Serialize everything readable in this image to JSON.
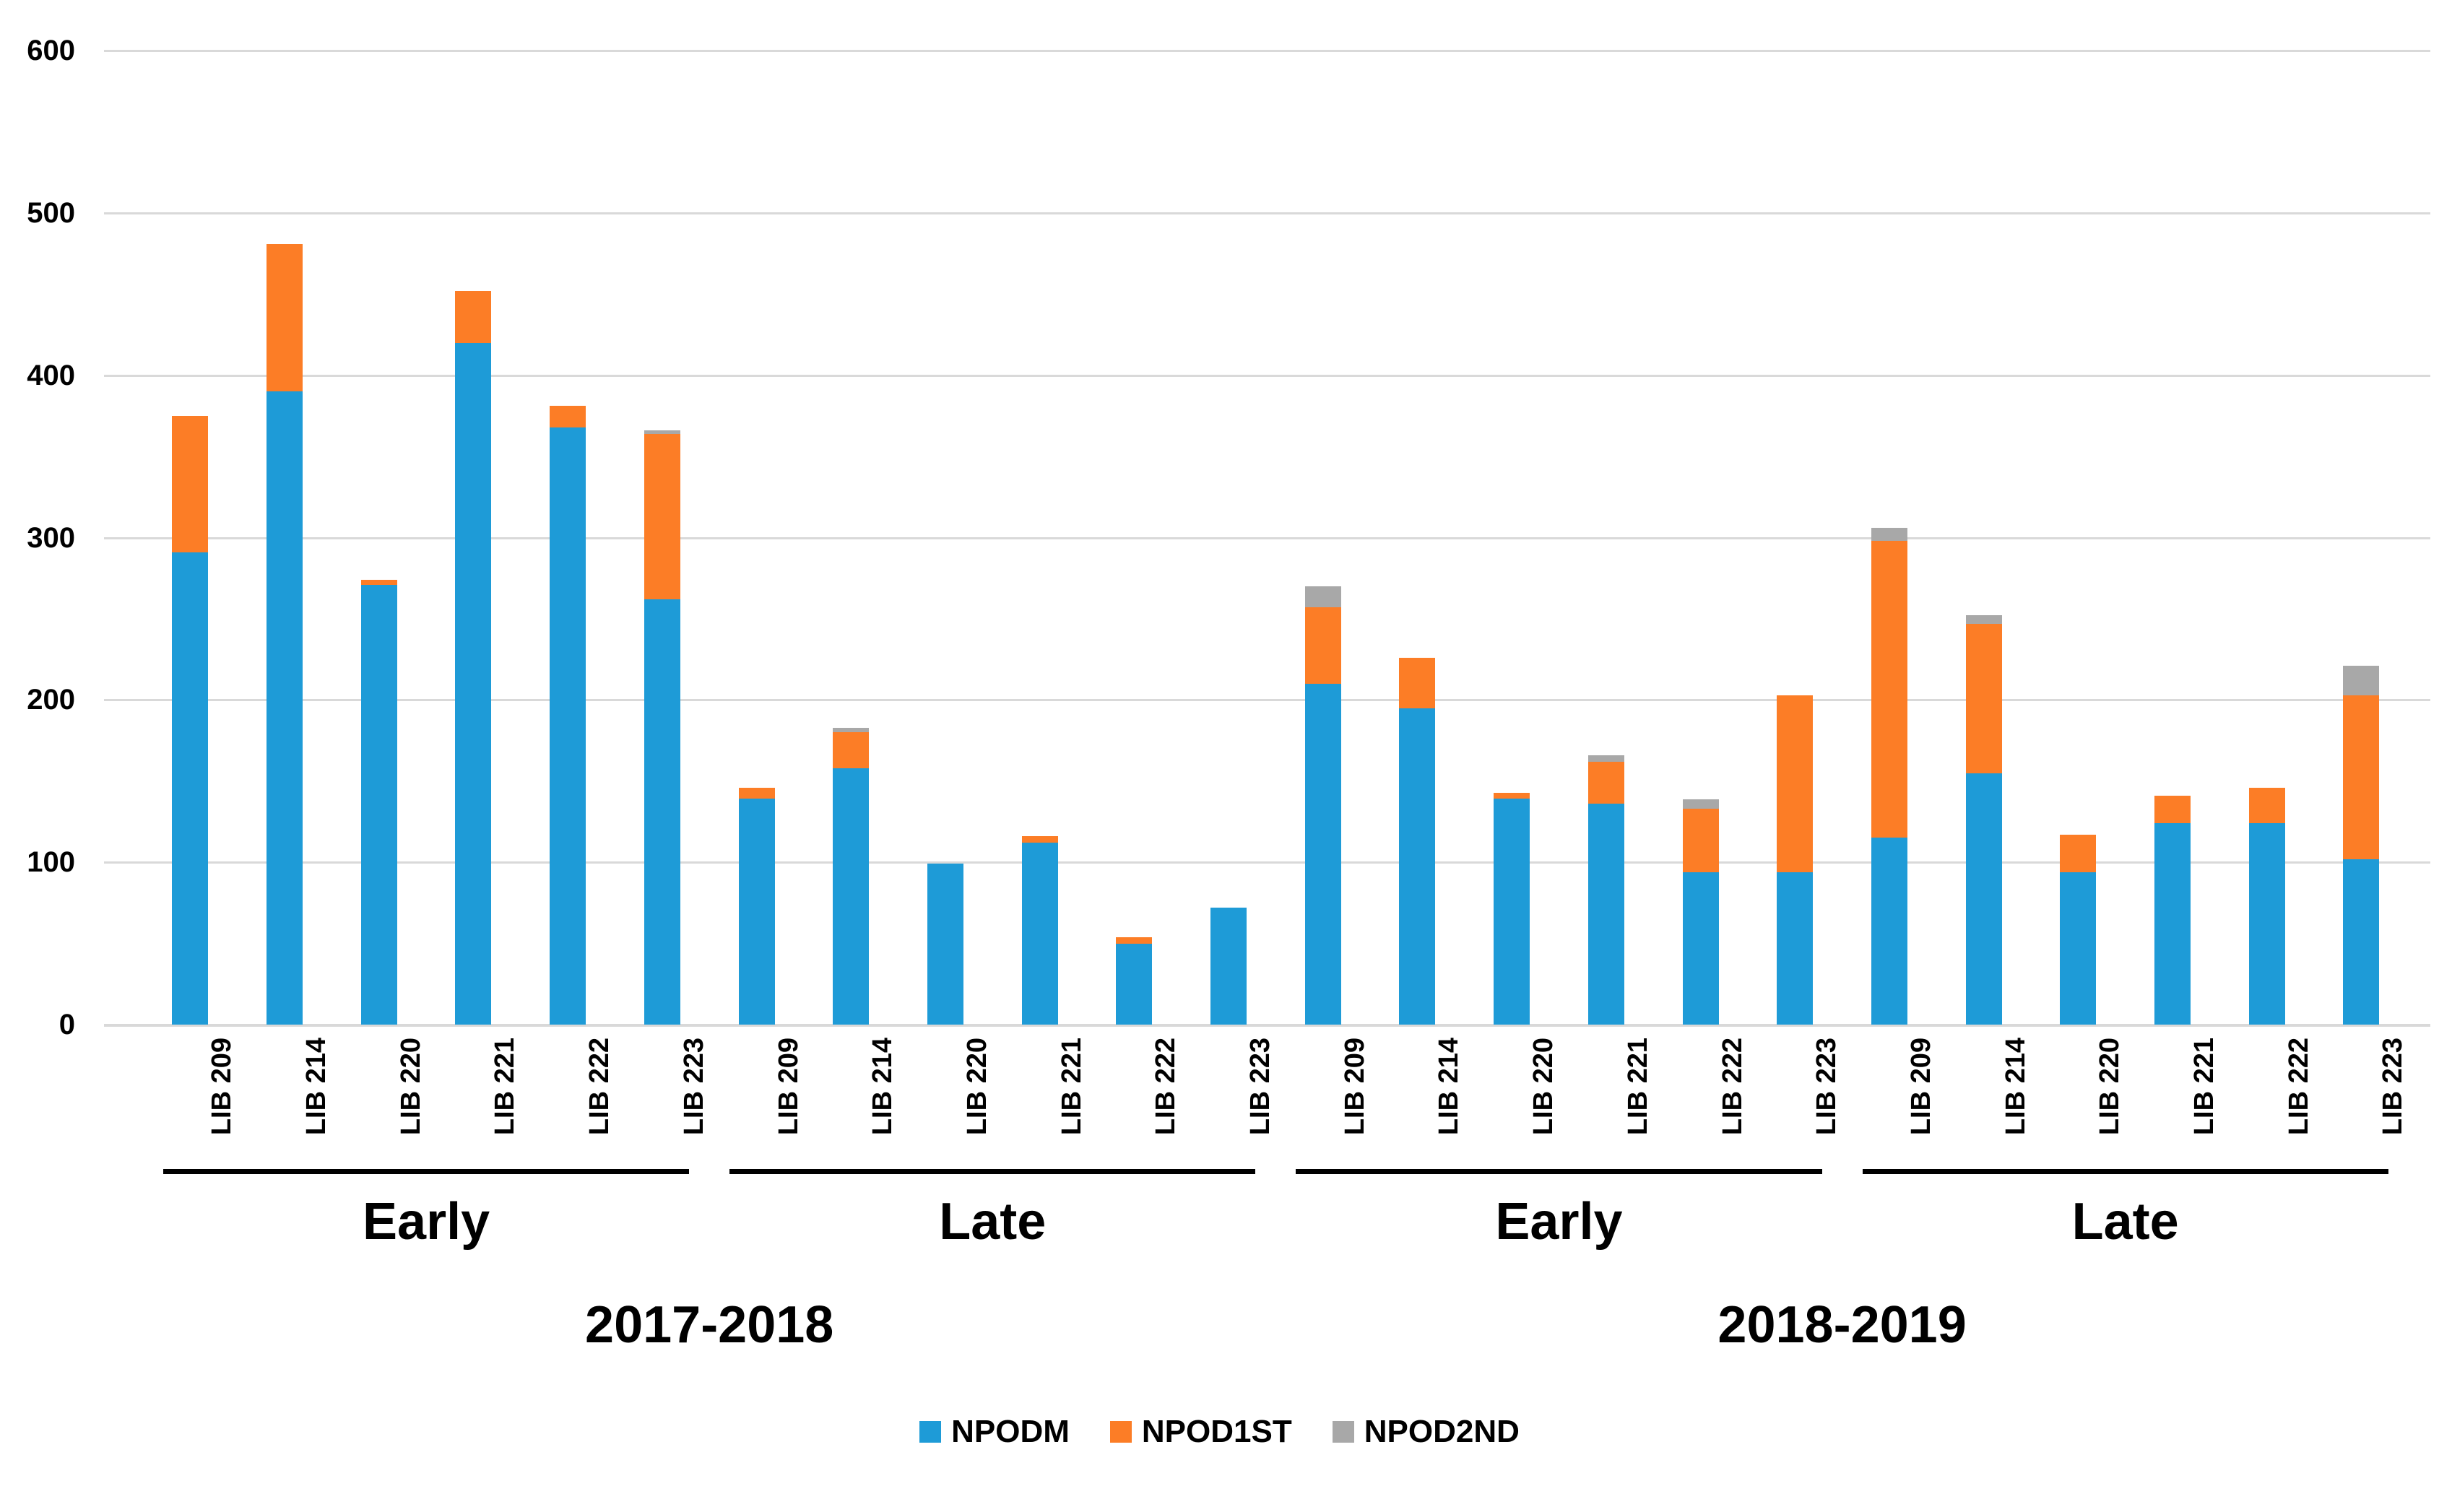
{
  "chart_data": {
    "type": "bar",
    "stacked": true,
    "title": "",
    "xlabel": "",
    "ylabel": "",
    "ylim": [
      0,
      600
    ],
    "yticks": [
      0,
      100,
      200,
      300,
      400,
      500,
      600
    ],
    "grid": true,
    "legend_position": "bottom",
    "categories": [
      "LIB 209",
      "LIB 214",
      "LIB 220",
      "LIB 221",
      "LIB 222",
      "LIB 223",
      "LIB 209",
      "LIB 214",
      "LIB 220",
      "LIB 221",
      "LIB 222",
      "LIB 223",
      "LIB 209",
      "LIB 214",
      "LIB 220",
      "LIB 221",
      "LIB 222",
      "LIB 223",
      "LIB 209",
      "LIB 214",
      "LIB 220",
      "LIB 221",
      "LIB 222",
      "LIB 223"
    ],
    "series": [
      {
        "name": "NPODM",
        "color": "#1e9bd7",
        "values": [
          291,
          390,
          271,
          420,
          368,
          262,
          139,
          158,
          99,
          112,
          50,
          72,
          210,
          195,
          139,
          136,
          94,
          94,
          115,
          155,
          94,
          124,
          124,
          102
        ]
      },
      {
        "name": "NPOD1ST",
        "color": "#fc7d26",
        "values": [
          84,
          91,
          3,
          32,
          13,
          102,
          7,
          22,
          0,
          4,
          4,
          0,
          47,
          31,
          4,
          26,
          39,
          109,
          183,
          92,
          23,
          17,
          22,
          101
        ]
      },
      {
        "name": "NPOD2ND",
        "color": "#a8a8a8",
        "values": [
          0,
          0,
          0,
          0,
          0,
          2,
          0,
          3,
          0,
          0,
          0,
          0,
          13,
          0,
          0,
          4,
          6,
          0,
          8,
          5,
          0,
          0,
          0,
          18
        ]
      }
    ],
    "group_labels": [
      {
        "label": "Early",
        "span": [
          0,
          5
        ]
      },
      {
        "label": "Late",
        "span": [
          6,
          11
        ]
      },
      {
        "label": "Early",
        "span": [
          12,
          17
        ]
      },
      {
        "label": "Late",
        "span": [
          18,
          23
        ]
      }
    ],
    "year_labels": [
      {
        "label": "2017-2018",
        "span": [
          0,
          11
        ]
      },
      {
        "label": "2018-2019",
        "span": [
          12,
          23
        ]
      }
    ],
    "legend": [
      "NPODM",
      "NPOD1ST",
      "NPOD2ND"
    ]
  },
  "colors": {
    "gridline": "#d9d9d9",
    "axis_line": "#d9d9d9",
    "text": "#000000",
    "group_underline": "#000000",
    "background": "#ffffff"
  }
}
